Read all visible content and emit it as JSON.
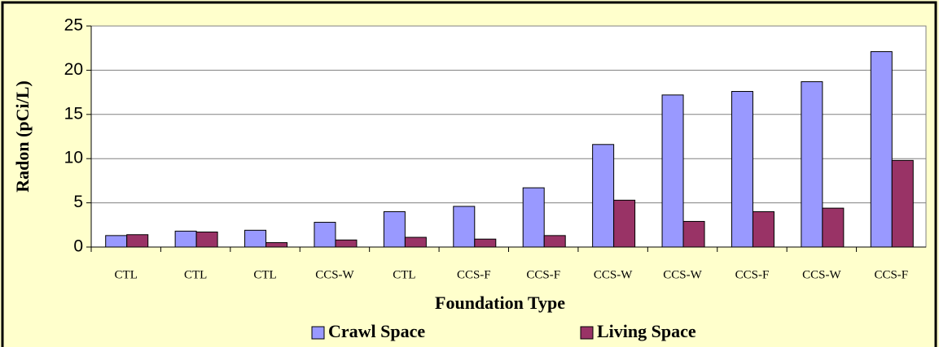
{
  "chart_data": {
    "type": "bar",
    "xlabel": "Foundation Type",
    "ylabel": "Radon (pCi/L)",
    "categories": [
      "CTL",
      "CTL",
      "CTL",
      "CCS-W",
      "CTL",
      "CCS-F",
      "CCS-F",
      "CCS-W",
      "CCS-W",
      "CCS-F",
      "CCS-W",
      "CCS-F"
    ],
    "series": [
      {
        "name": "Crawl Space",
        "color": "#9999ff",
        "values": [
          1.3,
          1.8,
          1.9,
          2.8,
          4.0,
          4.6,
          6.7,
          11.6,
          17.2,
          17.6,
          18.7,
          22.1
        ]
      },
      {
        "name": "Living Space",
        "color": "#993366",
        "values": [
          1.4,
          1.7,
          0.5,
          0.8,
          1.1,
          0.9,
          1.3,
          5.3,
          2.9,
          4.0,
          4.4,
          9.8
        ]
      }
    ],
    "ylim": [
      0,
      25
    ],
    "yticks": [
      0,
      5,
      10,
      15,
      20,
      25
    ],
    "grid": true,
    "legend": "bottom"
  }
}
